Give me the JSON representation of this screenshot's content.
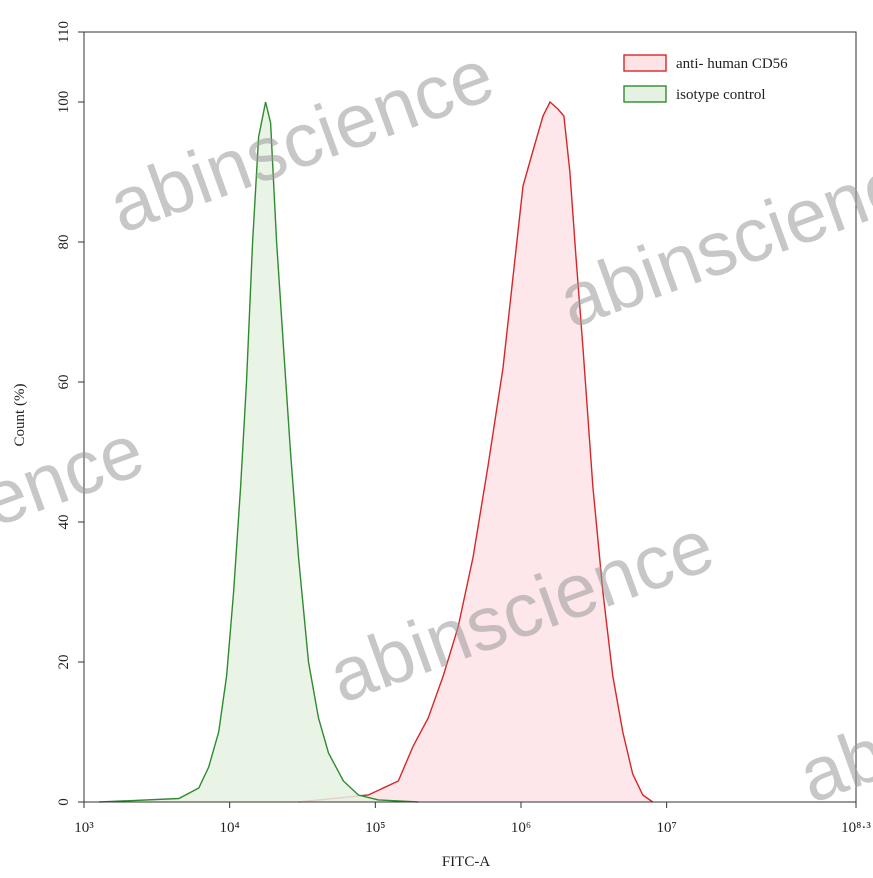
{
  "chart_data": {
    "type": "area",
    "xlabel": "FITC-A",
    "ylabel": "Count (%)",
    "watermark": "abinscience",
    "xscale": "log",
    "xlim": [
      1000,
      199526231
    ],
    "ylim": [
      0,
      110
    ],
    "xticks": [
      {
        "value": 1000,
        "label": "10³"
      },
      {
        "value": 10000,
        "label": "10⁴"
      },
      {
        "value": 100000,
        "label": "10⁵"
      },
      {
        "value": 1000000,
        "label": "10⁶"
      },
      {
        "value": 10000000,
        "label": "10⁷"
      },
      {
        "value": 199526231,
        "label": "10⁸·³"
      }
    ],
    "yticks": [
      0,
      20,
      40,
      60,
      80,
      100,
      110
    ],
    "legend": "upper right",
    "series": [
      {
        "name": "anti- human CD56",
        "color": "#d62728",
        "fill": "#fde3e6",
        "x": [
          29700,
          89500,
          143900,
          182000,
          230600,
          292200,
          370000,
          468800,
          594000,
          753000,
          881700,
          1032000,
          1208000,
          1416000,
          1581000,
          1792000,
          1971000,
          2167000,
          2383000,
          2661000,
          3115000,
          3648000,
          4266000,
          5000000,
          5848000,
          6855000,
          8017000
        ],
        "values": [
          0,
          1,
          3,
          8,
          12,
          18,
          25,
          35,
          48,
          62,
          75,
          88,
          93,
          98,
          100,
          99,
          98,
          90,
          78,
          65,
          45,
          30,
          18,
          10,
          4,
          1,
          0
        ]
      },
      {
        "name": "isotype control",
        "color": "#2e8b2e",
        "fill": "#e5f2e3",
        "x": [
          1270,
          4480,
          6140,
          7180,
          8410,
          9530,
          10640,
          11880,
          13060,
          14370,
          15810,
          17660,
          19100,
          21000,
          23440,
          26180,
          29700,
          34770,
          40700,
          47680,
          60370,
          76500,
          104900,
          197200
        ],
        "values": [
          0,
          0.5,
          2,
          5,
          10,
          18,
          30,
          45,
          60,
          80,
          95,
          100,
          97,
          80,
          65,
          50,
          35,
          20,
          12,
          7,
          3,
          1,
          0.3,
          0
        ]
      }
    ]
  }
}
